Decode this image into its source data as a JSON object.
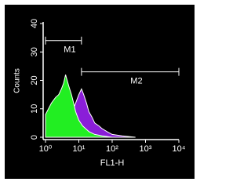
{
  "chart_data": {
    "type": "area",
    "xlabel": "FL1-H",
    "ylabel": "Counts",
    "xscale": "log",
    "xlim": [
      1,
      10000
    ],
    "xticks": [
      {
        "value": 1,
        "label": "10⁰"
      },
      {
        "value": 10,
        "label": "10¹"
      },
      {
        "value": 100,
        "label": "10²"
      },
      {
        "value": 1000,
        "label": "10³"
      },
      {
        "value": 10000,
        "label": "10⁴"
      }
    ],
    "ylim": [
      0,
      40
    ],
    "yticks": [
      0,
      10,
      20,
      30,
      40
    ],
    "series": [
      {
        "color": "#8a1ed8",
        "x": [
          3,
          4,
          5,
          6,
          8,
          10,
          12,
          14,
          17,
          20,
          25,
          30,
          40,
          50,
          70,
          100,
          200,
          500
        ],
        "values": [
          2,
          4,
          6,
          8,
          12,
          15,
          17,
          15,
          12,
          9,
          7,
          5,
          4,
          3,
          2,
          1,
          0.5,
          0
        ]
      },
      {
        "color": "#22ee22",
        "x": [
          1,
          1.5,
          2,
          2.5,
          3,
          3.5,
          4,
          5,
          6,
          7,
          8,
          10,
          13,
          16,
          20,
          30,
          50,
          100
        ],
        "values": [
          8,
          12,
          14,
          15,
          17,
          19,
          22,
          18,
          15,
          12,
          9,
          6,
          4,
          3,
          2,
          1,
          0.5,
          0
        ]
      }
    ],
    "markers": [
      {
        "label": "M1",
        "range": [
          1,
          12
        ],
        "level": 34
      },
      {
        "label": "M2",
        "range": [
          12,
          10000
        ],
        "level": 23
      }
    ]
  }
}
